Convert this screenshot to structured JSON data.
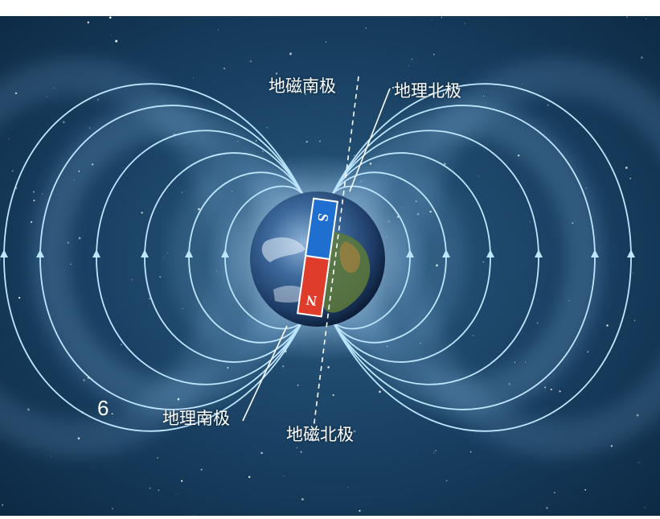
{
  "labels": {
    "geomagnetic_south": "地磁南极",
    "geographic_north": "地理北极",
    "geographic_south": "地理南极",
    "geomagnetic_north": "地磁北极"
  },
  "magnet": {
    "top_pole": "S",
    "bottom_pole": "N"
  },
  "figure_number": "6",
  "colors": {
    "space": "#173d5e",
    "field_line": "#bfe6ff",
    "magnet_south": "#1f6fd1",
    "magnet_north": "#e03c2c"
  }
}
